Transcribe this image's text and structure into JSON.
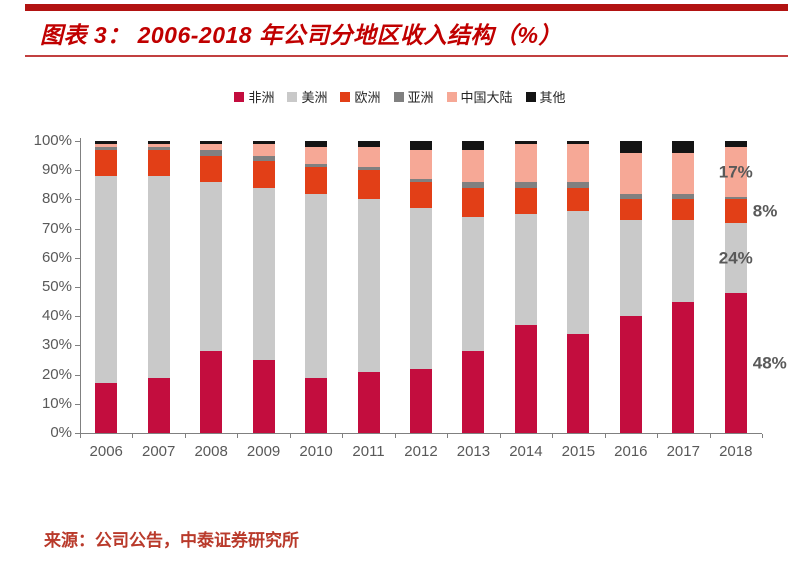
{
  "header": {
    "title": "图表 3： 2006-2018 年公司分地区收入结构（%）"
  },
  "footer": {
    "source": "来源：公司公告，中泰证券研究所"
  },
  "colors": {
    "accent_red": "#C00000",
    "rule_red": "#B21312",
    "axis_gray": "#808080",
    "label_gray": "#595959"
  },
  "chart_data": {
    "type": "bar",
    "stacked": true,
    "unit": "%",
    "title": "2006-2018 年公司分地区收入结构（%）",
    "categories": [
      "2006",
      "2007",
      "2008",
      "2009",
      "2010",
      "2011",
      "2012",
      "2013",
      "2014",
      "2015",
      "2016",
      "2017",
      "2018"
    ],
    "series": [
      {
        "name": "非洲",
        "key": "africa",
        "color": "#C30D3E",
        "values": [
          17,
          19,
          28,
          25,
          19,
          21,
          22,
          28,
          37,
          34,
          40,
          45,
          48
        ]
      },
      {
        "name": "美洲",
        "key": "americas",
        "color": "#C9C9C9",
        "values": [
          71,
          69,
          58,
          59,
          63,
          59,
          55,
          46,
          38,
          42,
          33,
          28,
          24
        ]
      },
      {
        "name": "欧洲",
        "key": "europe",
        "color": "#E23F17",
        "values": [
          9,
          9,
          9,
          9,
          9,
          10,
          9,
          10,
          9,
          8,
          7,
          7,
          8
        ]
      },
      {
        "name": "亚洲",
        "key": "asia",
        "color": "#808080",
        "values": [
          1,
          1,
          2,
          2,
          1,
          1,
          1,
          2,
          2,
          2,
          2,
          2,
          1
        ]
      },
      {
        "name": "中国大陆",
        "key": "china",
        "color": "#F6A896",
        "values": [
          1,
          1,
          2,
          4,
          6,
          7,
          10,
          11,
          13,
          13,
          14,
          14,
          17
        ]
      },
      {
        "name": "其他",
        "key": "other",
        "color": "#141414",
        "values": [
          1,
          1,
          1,
          1,
          2,
          2,
          3,
          3,
          1,
          1,
          4,
          4,
          2
        ]
      }
    ],
    "xlabel": "",
    "ylabel": "",
    "ylim": [
      0,
      100
    ],
    "y_ticks": [
      "0%",
      "10%",
      "20%",
      "30%",
      "40%",
      "50%",
      "60%",
      "70%",
      "80%",
      "90%",
      "100%"
    ],
    "grid": false,
    "legend_position": "top",
    "annotations": [
      {
        "text": "17%",
        "category": "2018",
        "series_key": "china",
        "placement": "center"
      },
      {
        "text": "8%",
        "category": "2018",
        "series_key": "europe",
        "placement": "right"
      },
      {
        "text": "24%",
        "category": "2018",
        "series_key": "americas",
        "placement": "center"
      },
      {
        "text": "48%",
        "category": "2018",
        "series_key": "africa",
        "placement": "right"
      }
    ]
  }
}
